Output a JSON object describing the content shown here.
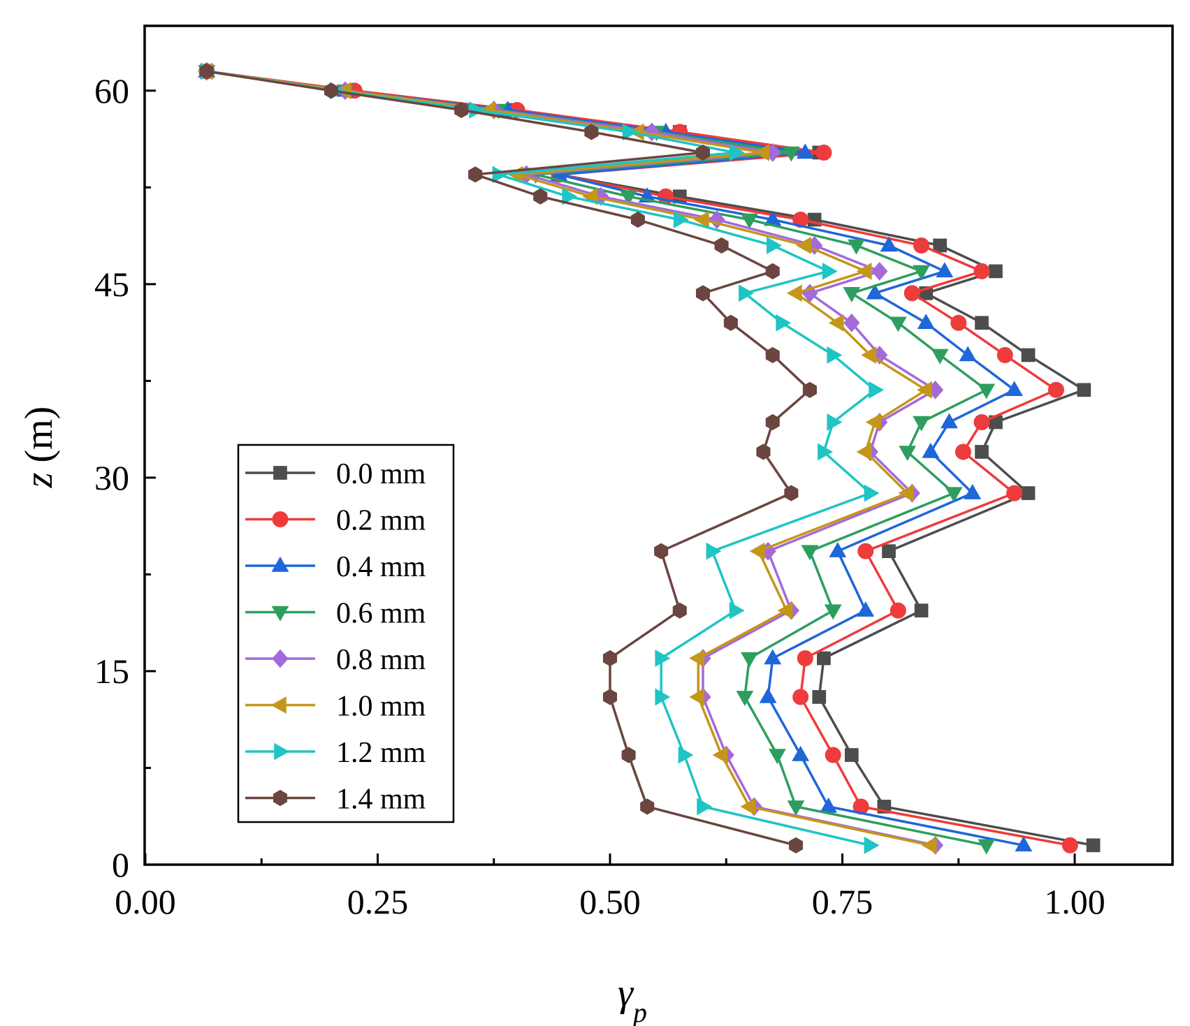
{
  "chart_data": {
    "type": "line",
    "title": "",
    "xlabel": "γ",
    "xlabel_sub": "p",
    "ylabel_var": "z",
    "ylabel_unit": " (m)",
    "xlim": [
      0.0,
      1.1
    ],
    "ylim": [
      0,
      65
    ],
    "xticks": [
      0.0,
      0.25,
      0.5,
      0.75,
      1.0
    ],
    "xtick_labels": [
      "0.00",
      "0.25",
      "0.50",
      "0.75",
      "1.00"
    ],
    "xticks_minor": [
      0.125,
      0.375,
      0.625,
      0.875
    ],
    "yticks": [
      0,
      15,
      30,
      45,
      60
    ],
    "ytick_labels": [
      "0",
      "15",
      "30",
      "45",
      "60"
    ],
    "yticks_minor": [
      7.5,
      22.5,
      37.5,
      52.5
    ],
    "grid": false,
    "legend_position": "bottom-left",
    "series": [
      {
        "name": "0.0 mm",
        "color": "#4d4d4d",
        "marker": "square",
        "points": [
          [
            0.066,
            61.5
          ],
          [
            0.22,
            60
          ],
          [
            0.395,
            58.5
          ],
          [
            0.575,
            56.8
          ],
          [
            0.725,
            55.2
          ],
          [
            0.445,
            53.5
          ],
          [
            0.575,
            51.8
          ],
          [
            0.72,
            50
          ],
          [
            0.855,
            48
          ],
          [
            0.915,
            46
          ],
          [
            0.84,
            44.3
          ],
          [
            0.9,
            42
          ],
          [
            0.95,
            39.5
          ],
          [
            1.01,
            36.8
          ],
          [
            0.915,
            34.3
          ],
          [
            0.9,
            32
          ],
          [
            0.95,
            28.8
          ],
          [
            0.8,
            24.3
          ],
          [
            0.835,
            19.7
          ],
          [
            0.73,
            16
          ],
          [
            0.725,
            13
          ],
          [
            0.76,
            8.5
          ],
          [
            0.795,
            4.5
          ],
          [
            1.02,
            1.5
          ]
        ]
      },
      {
        "name": "0.2 mm",
        "color": "#ee3b3b",
        "marker": "circle",
        "points": [
          [
            0.066,
            61.5
          ],
          [
            0.225,
            60
          ],
          [
            0.4,
            58.5
          ],
          [
            0.575,
            56.8
          ],
          [
            0.73,
            55.2
          ],
          [
            0.445,
            53.5
          ],
          [
            0.56,
            51.8
          ],
          [
            0.705,
            50
          ],
          [
            0.835,
            48
          ],
          [
            0.9,
            46
          ],
          [
            0.825,
            44.3
          ],
          [
            0.875,
            42
          ],
          [
            0.925,
            39.5
          ],
          [
            0.98,
            36.8
          ],
          [
            0.9,
            34.3
          ],
          [
            0.88,
            32
          ],
          [
            0.935,
            28.8
          ],
          [
            0.775,
            24.3
          ],
          [
            0.81,
            19.7
          ],
          [
            0.71,
            16
          ],
          [
            0.705,
            13
          ],
          [
            0.74,
            8.5
          ],
          [
            0.77,
            4.5
          ],
          [
            0.995,
            1.5
          ]
        ]
      },
      {
        "name": "0.4 mm",
        "color": "#1f66d9",
        "marker": "triangle-up",
        "points": [
          [
            0.066,
            61.5
          ],
          [
            0.215,
            60
          ],
          [
            0.39,
            58.5
          ],
          [
            0.56,
            56.8
          ],
          [
            0.71,
            55.2
          ],
          [
            0.445,
            53.5
          ],
          [
            0.54,
            51.8
          ],
          [
            0.675,
            50
          ],
          [
            0.8,
            48
          ],
          [
            0.86,
            46
          ],
          [
            0.785,
            44.3
          ],
          [
            0.84,
            42
          ],
          [
            0.885,
            39.5
          ],
          [
            0.935,
            36.8
          ],
          [
            0.865,
            34.3
          ],
          [
            0.845,
            32
          ],
          [
            0.89,
            28.8
          ],
          [
            0.745,
            24.3
          ],
          [
            0.775,
            19.7
          ],
          [
            0.675,
            16
          ],
          [
            0.67,
            13
          ],
          [
            0.705,
            8.5
          ],
          [
            0.735,
            4.5
          ],
          [
            0.945,
            1.5
          ]
        ]
      },
      {
        "name": "0.6 mm",
        "color": "#2e9e5e",
        "marker": "triangle-down",
        "points": [
          [
            0.066,
            61.5
          ],
          [
            0.215,
            60
          ],
          [
            0.38,
            58.5
          ],
          [
            0.55,
            56.8
          ],
          [
            0.695,
            55.2
          ],
          [
            0.42,
            53.5
          ],
          [
            0.52,
            51.8
          ],
          [
            0.65,
            50
          ],
          [
            0.765,
            48
          ],
          [
            0.835,
            46
          ],
          [
            0.76,
            44.3
          ],
          [
            0.81,
            42
          ],
          [
            0.855,
            39.5
          ],
          [
            0.905,
            36.8
          ],
          [
            0.835,
            34.3
          ],
          [
            0.82,
            32
          ],
          [
            0.87,
            28.8
          ],
          [
            0.715,
            24.3
          ],
          [
            0.74,
            19.7
          ],
          [
            0.65,
            16
          ],
          [
            0.645,
            13
          ],
          [
            0.68,
            8.5
          ],
          [
            0.7,
            4.5
          ],
          [
            0.905,
            1.5
          ]
        ]
      },
      {
        "name": "0.8 mm",
        "color": "#a46ad9",
        "marker": "diamond",
        "points": [
          [
            0.066,
            61.5
          ],
          [
            0.215,
            60
          ],
          [
            0.375,
            58.5
          ],
          [
            0.545,
            56.8
          ],
          [
            0.675,
            55.2
          ],
          [
            0.41,
            53.5
          ],
          [
            0.49,
            51.8
          ],
          [
            0.615,
            50
          ],
          [
            0.72,
            48
          ],
          [
            0.79,
            46
          ],
          [
            0.715,
            44.3
          ],
          [
            0.76,
            42
          ],
          [
            0.79,
            39.5
          ],
          [
            0.85,
            36.8
          ],
          [
            0.79,
            34.3
          ],
          [
            0.78,
            32
          ],
          [
            0.825,
            28.8
          ],
          [
            0.67,
            24.3
          ],
          [
            0.695,
            19.7
          ],
          [
            0.6,
            16
          ],
          [
            0.6,
            13
          ],
          [
            0.625,
            8.5
          ],
          [
            0.655,
            4.5
          ],
          [
            0.85,
            1.5
          ]
        ]
      },
      {
        "name": "1.0 mm",
        "color": "#c4961a",
        "marker": "triangle-left",
        "points": [
          [
            0.066,
            61.5
          ],
          [
            0.215,
            60
          ],
          [
            0.37,
            58.5
          ],
          [
            0.53,
            56.8
          ],
          [
            0.665,
            55.2
          ],
          [
            0.4,
            53.5
          ],
          [
            0.48,
            51.8
          ],
          [
            0.6,
            50
          ],
          [
            0.71,
            48
          ],
          [
            0.775,
            46
          ],
          [
            0.7,
            44.3
          ],
          [
            0.745,
            42
          ],
          [
            0.78,
            39.5
          ],
          [
            0.84,
            36.8
          ],
          [
            0.785,
            34.3
          ],
          [
            0.775,
            32
          ],
          [
            0.82,
            28.8
          ],
          [
            0.66,
            24.3
          ],
          [
            0.69,
            19.7
          ],
          [
            0.595,
            16
          ],
          [
            0.595,
            13
          ],
          [
            0.62,
            8.5
          ],
          [
            0.65,
            4.5
          ],
          [
            0.845,
            1.5
          ]
        ]
      },
      {
        "name": "1.2 mm",
        "color": "#1fc4c4",
        "marker": "triangle-right",
        "points": [
          [
            0.066,
            61.5
          ],
          [
            0.205,
            60
          ],
          [
            0.355,
            58.5
          ],
          [
            0.52,
            56.8
          ],
          [
            0.635,
            55.2
          ],
          [
            0.38,
            53.5
          ],
          [
            0.455,
            51.8
          ],
          [
            0.575,
            50
          ],
          [
            0.675,
            48
          ],
          [
            0.735,
            46
          ],
          [
            0.645,
            44.3
          ],
          [
            0.685,
            42
          ],
          [
            0.74,
            39.5
          ],
          [
            0.785,
            36.8
          ],
          [
            0.74,
            34.3
          ],
          [
            0.73,
            32
          ],
          [
            0.78,
            28.8
          ],
          [
            0.61,
            24.3
          ],
          [
            0.635,
            19.7
          ],
          [
            0.555,
            16
          ],
          [
            0.555,
            13
          ],
          [
            0.58,
            8.5
          ],
          [
            0.6,
            4.5
          ],
          [
            0.78,
            1.5
          ]
        ]
      },
      {
        "name": "1.4 mm",
        "color": "#6b4540",
        "marker": "hexagon",
        "points": [
          [
            0.066,
            61.5
          ],
          [
            0.2,
            60
          ],
          [
            0.34,
            58.5
          ],
          [
            0.48,
            56.8
          ],
          [
            0.6,
            55.2
          ],
          [
            0.355,
            53.5
          ],
          [
            0.425,
            51.8
          ],
          [
            0.53,
            50
          ],
          [
            0.62,
            48
          ],
          [
            0.675,
            46
          ],
          [
            0.6,
            44.3
          ],
          [
            0.63,
            42
          ],
          [
            0.675,
            39.5
          ],
          [
            0.715,
            36.8
          ],
          [
            0.675,
            34.3
          ],
          [
            0.665,
            32
          ],
          [
            0.695,
            28.8
          ],
          [
            0.555,
            24.3
          ],
          [
            0.575,
            19.7
          ],
          [
            0.5,
            16
          ],
          [
            0.5,
            13
          ],
          [
            0.52,
            8.5
          ],
          [
            0.54,
            4.5
          ],
          [
            0.7,
            1.5
          ]
        ]
      }
    ]
  }
}
